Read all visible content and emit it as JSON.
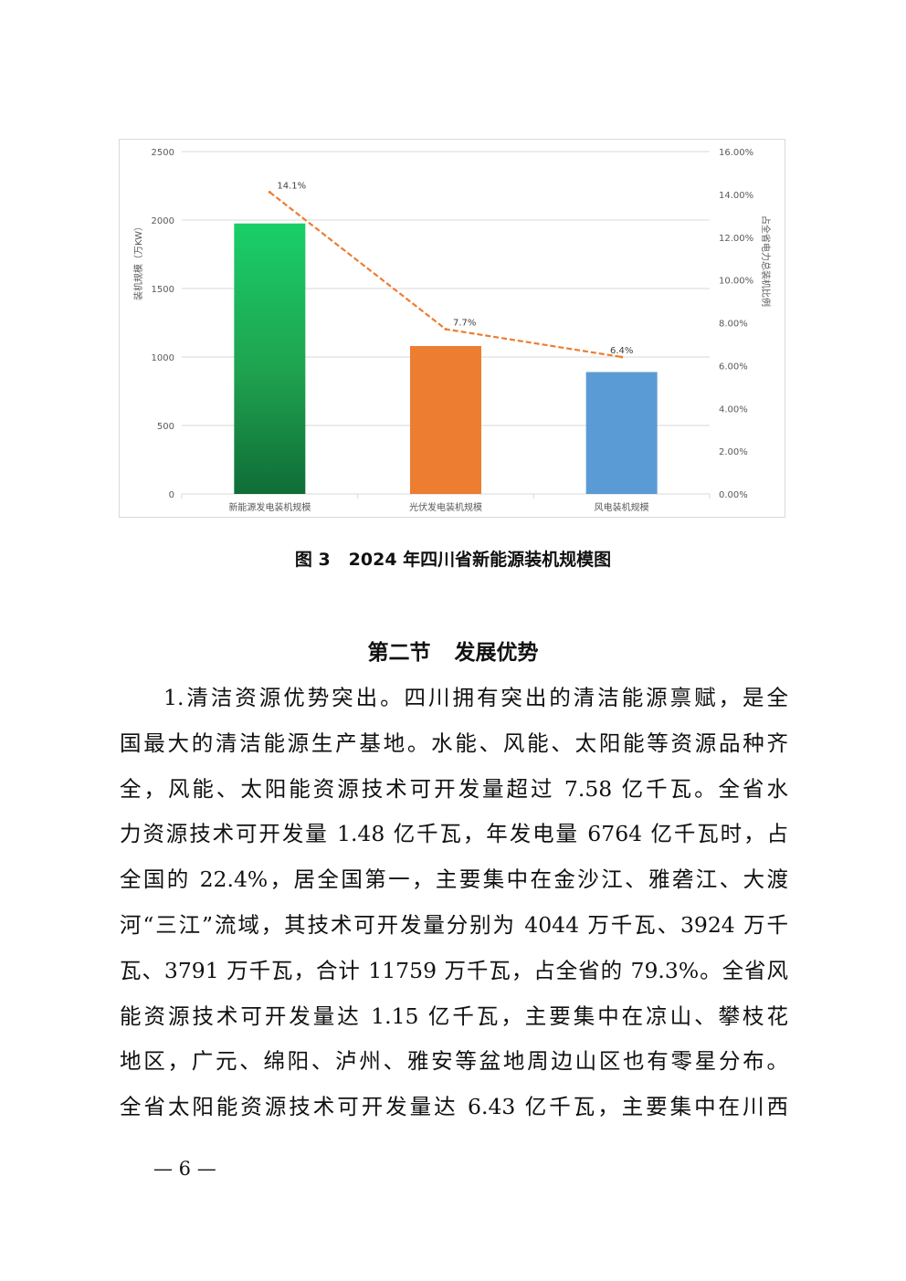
{
  "chart_data": {
    "type": "bar",
    "categories": [
      "新能源发电装机规模",
      "光伏发电装机规模",
      "风电装机规模"
    ],
    "values": [
      1975,
      1080,
      890
    ],
    "bar_colors": [
      "#1b9e4b",
      "#ed7d31",
      "#5b9bd5"
    ],
    "ylabel": "装机规模（万KW）",
    "ylim": [
      0,
      2500
    ],
    "yticks": [
      0,
      500,
      1000,
      1500,
      2000,
      2500
    ],
    "y2label": "占全省电力总装机比例",
    "y2lim": [
      0,
      16
    ],
    "y2ticks": [
      "0.00%",
      "2.00%",
      "4.00%",
      "6.00%",
      "8.00%",
      "10.00%",
      "12.00%",
      "14.00%",
      "16.00%"
    ],
    "line_series": {
      "values": [
        14.1,
        7.7,
        6.4
      ],
      "labels": [
        "14.1%",
        "7.7%",
        "6.4%"
      ],
      "color": "#ed7d31",
      "style": "dashed"
    },
    "grid": true
  },
  "caption": {
    "number": "图 3",
    "text": "2024 年四川省新能源装机规模图"
  },
  "section": {
    "number": "第二节",
    "title": "发展优势"
  },
  "body_lines": [
    "1.清洁资源优势突出。四川拥有突出的清洁能源禀赋，是全",
    "国最大的清洁能源生产基地。水能、风能、太阳能等资源品种齐",
    "全，风能、太阳能资源技术可开发量超过 7.58 亿千瓦。全省水",
    "力资源技术可开发量 1.48 亿千瓦，年发电量 6764 亿千瓦时，占",
    "全国的 22.4%，居全国第一，主要集中在金沙江、雅砻江、大渡",
    "河“三江”流域，其技术可开发量分别为 4044 万千瓦、3924 万千",
    "瓦、3791 万千瓦，合计 11759 万千瓦，占全省的 79.3%。全省风",
    "能资源技术可开发量达 1.15 亿千瓦，主要集中在凉山、攀枝花",
    "地区，广元、绵阳、泸州、雅安等盆地周边山区也有零星分布。",
    "全省太阳能资源技术可开发量达 6.43 亿千瓦，主要集中在川西"
  ],
  "page_number": "— 6 —"
}
